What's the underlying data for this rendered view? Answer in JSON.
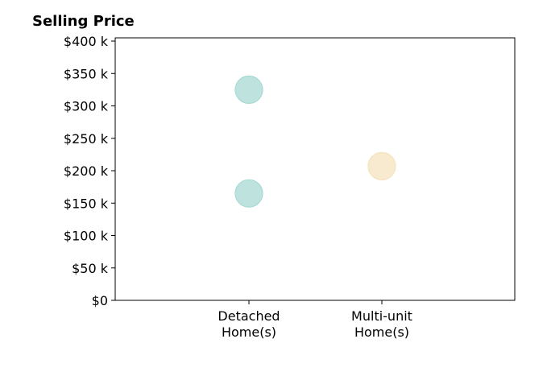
{
  "chart_data": {
    "type": "scatter",
    "title": "Selling Price",
    "xlabel": "",
    "ylabel": "",
    "categories": [
      [
        "Detached",
        "Home(s)"
      ],
      [
        "Multi-unit",
        "Home(s)"
      ]
    ],
    "ylim": [
      0,
      405000
    ],
    "yticks": [
      0,
      50000,
      100000,
      150000,
      200000,
      250000,
      300000,
      350000,
      400000
    ],
    "ytick_labels": [
      "$0",
      "$50 k",
      "$100 k",
      "$150 k",
      "$200 k",
      "$250 k",
      "$300 k",
      "$350 k",
      "$400 k"
    ],
    "grid": false,
    "points": [
      {
        "category": 0,
        "value": 325000,
        "color": "#a8d9d3"
      },
      {
        "category": 0,
        "value": 165000,
        "color": "#a8d9d3"
      },
      {
        "category": 1,
        "value": 207000,
        "color": "#f5e3bd"
      }
    ]
  }
}
